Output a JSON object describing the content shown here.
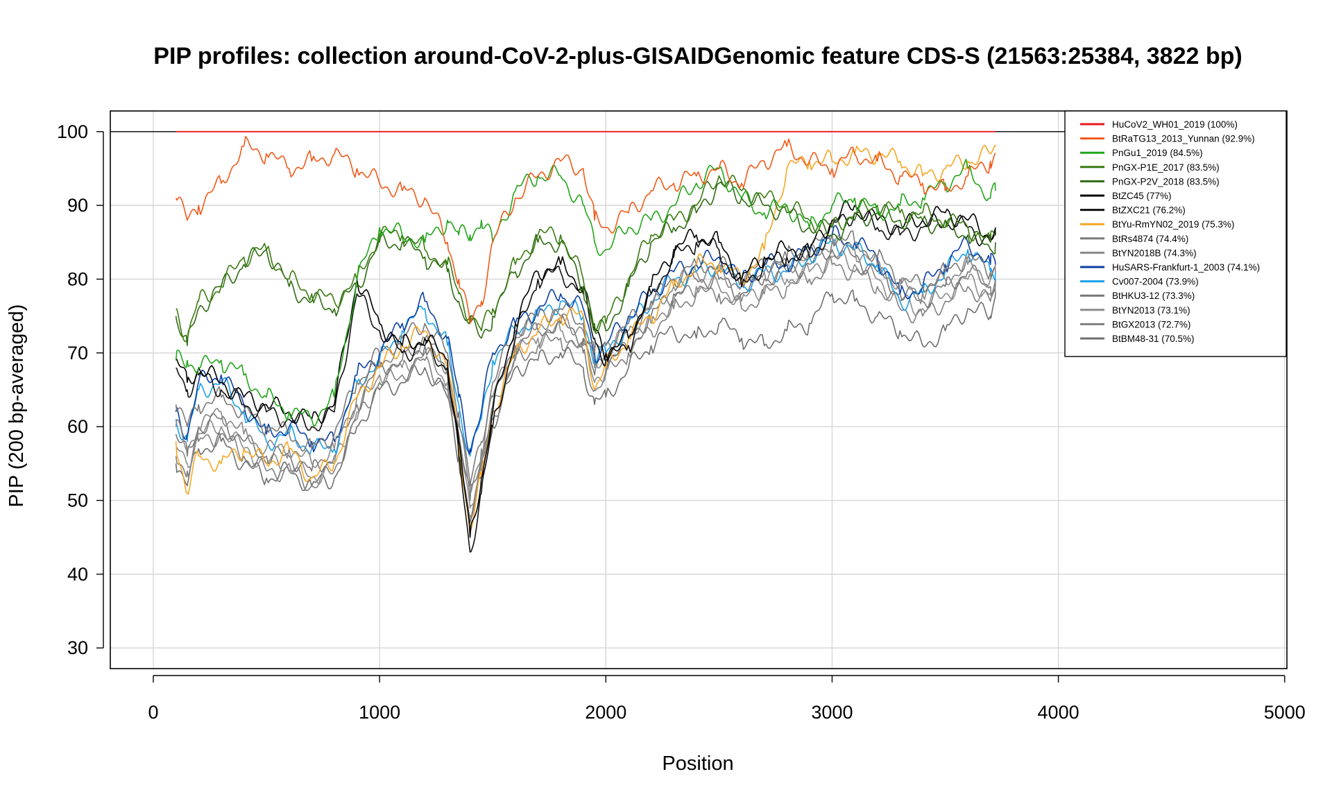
{
  "chart_data": {
    "type": "line",
    "title": "PIP profiles: collection around-CoV-2-plus-GISAIDGenomic feature CDS-S (21563:25384, 3822 bp)",
    "xlabel": "Position",
    "ylabel": "PIP (200 bp-averaged)",
    "xlim": [
      -190,
      5010
    ],
    "ylim": [
      27.2,
      102.8
    ],
    "x_ticks": [
      0,
      1000,
      2000,
      3000,
      4000,
      5000
    ],
    "y_ticks": [
      30,
      40,
      50,
      60,
      70,
      80,
      90,
      100
    ],
    "grid": true,
    "legend_position": "top-right",
    "reference_line": 100,
    "x": [
      100,
      150,
      200,
      300,
      400,
      500,
      600,
      700,
      800,
      900,
      1000,
      1100,
      1200,
      1300,
      1350,
      1400,
      1450,
      1500,
      1600,
      1700,
      1800,
      1900,
      1950,
      2000,
      2100,
      2200,
      2300,
      2400,
      2500,
      2600,
      2700,
      2800,
      2900,
      3000,
      3100,
      3200,
      3300,
      3400,
      3500,
      3600,
      3700,
      3722
    ],
    "series": [
      {
        "name": "HuCoV2_WH01_2019 (100%)",
        "color": "#e8171f",
        "values": [
          100,
          100,
          100,
          100,
          100,
          100,
          100,
          100,
          100,
          100,
          100,
          100,
          100,
          100,
          100,
          100,
          100,
          100,
          100,
          100,
          100,
          100,
          100,
          100,
          100,
          100,
          100,
          100,
          100,
          100,
          100,
          100,
          100,
          100,
          100,
          100,
          100,
          100,
          100,
          100,
          100,
          100
        ]
      },
      {
        "name": "BtRaTG13_2013_Yunnan (92.9%)",
        "color": "#f05a1a",
        "values": [
          91,
          88,
          90,
          93,
          98,
          97,
          95,
          96,
          97,
          95,
          93,
          92,
          91,
          85,
          80,
          74,
          77,
          85,
          91,
          94,
          96,
          95,
          88,
          87,
          89,
          92,
          93,
          94,
          95,
          93,
          96,
          98,
          96,
          95,
          97,
          96,
          94,
          93,
          92,
          94,
          96,
          97
        ]
      },
      {
        "name": "PnGu1_2019 (84.5%)",
        "color": "#22a51a",
        "values": [
          69,
          69,
          68,
          69,
          67,
          64,
          62,
          61,
          64,
          80,
          87,
          86,
          85,
          88,
          86,
          86,
          88,
          85,
          92,
          94,
          94,
          90,
          85,
          84,
          87,
          88,
          90,
          93,
          95,
          91,
          89,
          90,
          87,
          90,
          91,
          89,
          90,
          91,
          93,
          95,
          91,
          92
        ]
      },
      {
        "name": "PnGX-P1E_2017 (83.5%)",
        "color": "#3a7a10",
        "values": [
          76,
          72,
          77,
          79,
          83,
          84,
          80,
          78,
          77,
          80,
          86,
          86,
          84,
          82,
          78,
          75,
          73,
          76,
          82,
          86,
          86,
          80,
          74,
          74,
          80,
          86,
          88,
          90,
          94,
          92,
          91,
          90,
          88,
          87,
          89,
          90,
          89,
          89,
          88,
          87,
          85,
          86
        ]
      },
      {
        "name": "PnGX-P2V_2018 (83.5%)",
        "color": "#2e6b12",
        "values": [
          75,
          71,
          76,
          79,
          82,
          84,
          79,
          77,
          76,
          79,
          85,
          85,
          83,
          81,
          77,
          74,
          72,
          75,
          81,
          85,
          85,
          79,
          73,
          73,
          79,
          85,
          87,
          89,
          93,
          91,
          90,
          89,
          87,
          86,
          88,
          89,
          88,
          88,
          87,
          86,
          84,
          85
        ]
      },
      {
        "name": "BtZC45 (77%)",
        "color": "#000000",
        "values": [
          69,
          66,
          68,
          66,
          64,
          63,
          62,
          61,
          63,
          80,
          74,
          71,
          72,
          69,
          58,
          45,
          53,
          62,
          74,
          81,
          82,
          79,
          73,
          70,
          72,
          79,
          84,
          86,
          85,
          80,
          83,
          84,
          84,
          88,
          90,
          88,
          87,
          88,
          89,
          88,
          86,
          87
        ]
      },
      {
        "name": "BtZXC21 (76.2%)",
        "color": "#111111",
        "values": [
          68,
          65,
          67,
          65,
          63,
          62,
          61,
          60,
          62,
          78,
          73,
          70,
          71,
          68,
          56,
          43,
          51,
          60,
          72,
          80,
          81,
          78,
          72,
          69,
          71,
          78,
          83,
          85,
          84,
          79,
          82,
          83,
          83,
          87,
          89,
          87,
          86,
          87,
          88,
          87,
          85,
          86
        ]
      },
      {
        "name": "BtYu-RmYN02_2019 (75.3%)",
        "color": "#f5a623",
        "values": [
          58,
          51,
          56,
          55,
          57,
          55,
          57,
          53,
          55,
          64,
          68,
          71,
          73,
          68,
          58,
          46,
          53,
          62,
          70,
          73,
          75,
          75,
          65,
          68,
          72,
          75,
          79,
          82,
          82,
          80,
          84,
          95,
          96,
          96,
          97,
          97,
          96,
          94,
          95,
          96,
          97,
          98
        ]
      },
      {
        "name": "BtRs4874 (74.4%)",
        "color": "#7a7a7a",
        "values": [
          63,
          60,
          63,
          64,
          62,
          60,
          59,
          57,
          59,
          66,
          70,
          72,
          74,
          70,
          62,
          52,
          58,
          66,
          73,
          75,
          76,
          74,
          70,
          71,
          74,
          77,
          80,
          82,
          82,
          80,
          82,
          83,
          84,
          86,
          85,
          83,
          80,
          79,
          81,
          83,
          81,
          82
        ]
      },
      {
        "name": "BtYN2018B (74.3%)",
        "color": "#888888",
        "values": [
          60,
          57,
          60,
          62,
          59,
          57,
          57,
          55,
          57,
          64,
          69,
          70,
          72,
          68,
          60,
          51,
          57,
          64,
          72,
          74,
          75,
          73,
          68,
          70,
          73,
          76,
          79,
          81,
          81,
          79,
          81,
          82,
          83,
          85,
          84,
          82,
          79,
          78,
          80,
          82,
          80,
          81
        ]
      },
      {
        "name": "HuSARS-Frankfurt-1_2003 (74.1%)",
        "color": "#0b3fa3",
        "values": [
          62,
          59,
          66,
          67,
          63,
          59,
          60,
          58,
          58,
          67,
          70,
          74,
          77,
          72,
          64,
          57,
          62,
          70,
          74,
          76,
          78,
          76,
          70,
          71,
          75,
          78,
          81,
          82,
          83,
          80,
          82,
          82,
          84,
          86,
          85,
          83,
          78,
          79,
          82,
          85,
          82,
          82
        ]
      },
      {
        "name": "Cv007-2004 (73.9%)",
        "color": "#1aa0e8",
        "values": [
          61,
          58,
          65,
          66,
          62,
          58,
          59,
          57,
          57,
          66,
          69,
          73,
          76,
          71,
          63,
          56,
          61,
          69,
          73,
          75,
          77,
          75,
          69,
          70,
          74,
          77,
          80,
          81,
          82,
          79,
          81,
          81,
          83,
          85,
          84,
          82,
          77,
          78,
          81,
          84,
          81,
          81
        ]
      },
      {
        "name": "BtHKU3-12 (73.3%)",
        "color": "#777777",
        "values": [
          59,
          56,
          60,
          61,
          58,
          56,
          56,
          54,
          56,
          63,
          68,
          69,
          71,
          67,
          59,
          50,
          56,
          63,
          71,
          73,
          74,
          72,
          67,
          69,
          72,
          75,
          78,
          80,
          80,
          78,
          80,
          81,
          82,
          84,
          83,
          81,
          78,
          77,
          79,
          81,
          79,
          80
        ]
      },
      {
        "name": "BtYN2013 (73.1%)",
        "color": "#8c8c8c",
        "values": [
          57,
          55,
          59,
          60,
          57,
          55,
          55,
          53,
          55,
          62,
          67,
          68,
          70,
          66,
          58,
          49,
          55,
          62,
          70,
          72,
          73,
          71,
          66,
          68,
          71,
          74,
          77,
          79,
          79,
          77,
          79,
          80,
          81,
          83,
          82,
          80,
          77,
          76,
          78,
          80,
          78,
          79
        ]
      },
      {
        "name": "BtGX2013 (72.7%)",
        "color": "#808080",
        "values": [
          56,
          54,
          58,
          59,
          56,
          54,
          54,
          52,
          54,
          61,
          66,
          67,
          69,
          65,
          57,
          48,
          54,
          61,
          69,
          71,
          72,
          70,
          65,
          67,
          70,
          73,
          76,
          78,
          78,
          76,
          78,
          79,
          80,
          82,
          81,
          79,
          76,
          75,
          77,
          79,
          77,
          78
        ]
      },
      {
        "name": "BtBM48-31 (70.5%)",
        "color": "#6e6e6e",
        "values": [
          55,
          52,
          57,
          58,
          55,
          53,
          54,
          52,
          53,
          60,
          65,
          66,
          68,
          64,
          56,
          47,
          53,
          60,
          68,
          69,
          70,
          68,
          63,
          64,
          68,
          71,
          73,
          72,
          74,
          72,
          71,
          73,
          74,
          78,
          77,
          75,
          73,
          71,
          73,
          76,
          75,
          78
        ]
      }
    ]
  }
}
